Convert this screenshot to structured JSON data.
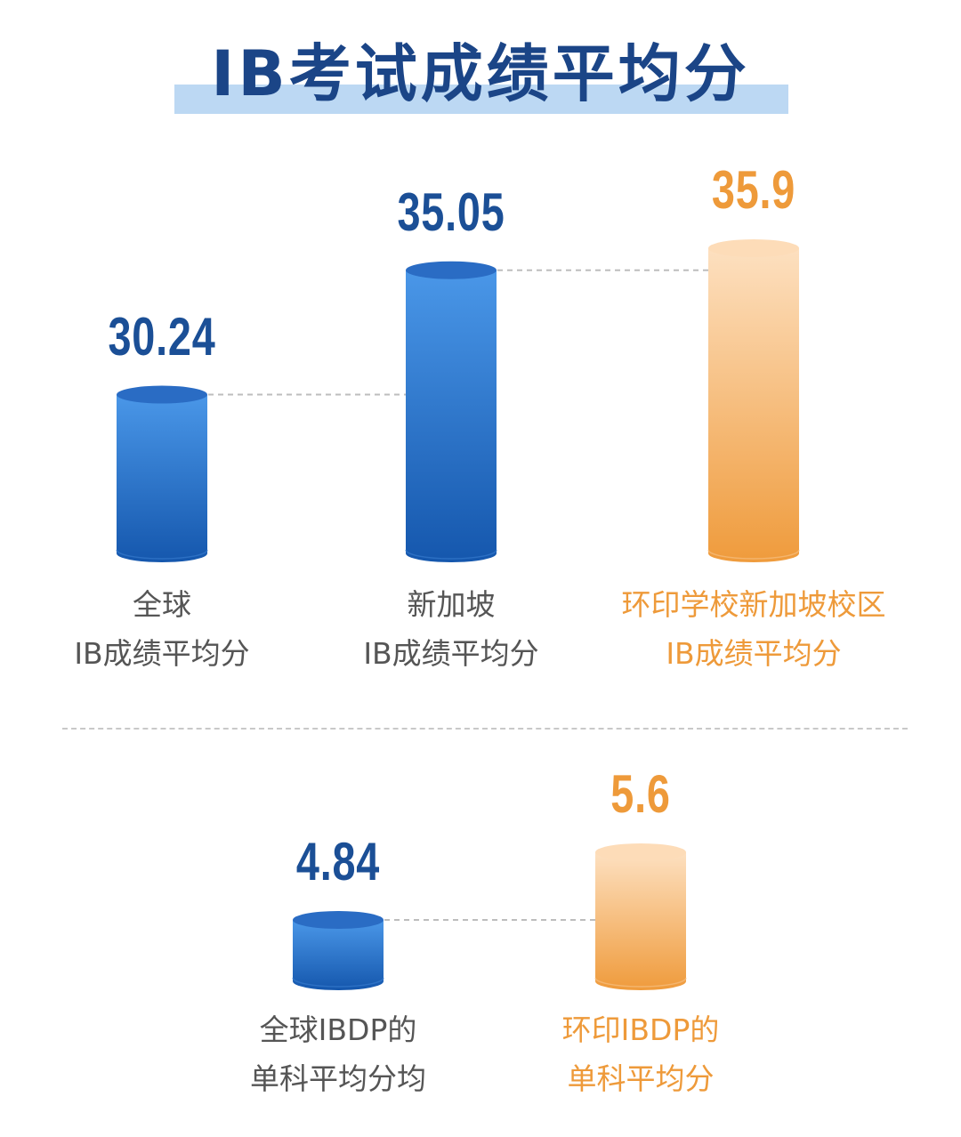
{
  "title": "IB考试成绩平均分",
  "colors": {
    "blue_light": "#4a97e8",
    "blue_dark": "#1557ad",
    "blue_text": "#1b4f96",
    "orange_light": "#fde0c0",
    "orange_dark": "#ef9b3c",
    "orange_text": "#ee9a3a",
    "gray_text": "#555555",
    "title_band": "#bcd8f3"
  },
  "chart_data": [
    {
      "type": "bar",
      "categories": [
        "全球 IB成绩平均分",
        "新加坡 IB成绩平均分",
        "环印学校新加坡校区 IB成绩平均分"
      ],
      "category_lines": [
        [
          "全球",
          "IB成绩平均分"
        ],
        [
          "新加坡",
          "IB成绩平均分"
        ],
        [
          "环印学校新加坡校区",
          "IB成绩平均分"
        ]
      ],
      "values": [
        30.24,
        35.05,
        35.9
      ],
      "value_labels": [
        "30.24",
        "35.05",
        "35.9"
      ],
      "highlight": [
        false,
        false,
        true
      ]
    },
    {
      "type": "bar",
      "categories": [
        "全球IBDP的 单科平均分均",
        "环印IBDP的 单科平均分"
      ],
      "category_lines": [
        [
          "全球IBDP的",
          "单科平均分均"
        ],
        [
          "环印IBDP的",
          "单科平均分"
        ]
      ],
      "values": [
        4.84,
        5.6
      ],
      "value_labels": [
        "4.84",
        "5.6"
      ],
      "highlight": [
        false,
        true
      ]
    }
  ]
}
